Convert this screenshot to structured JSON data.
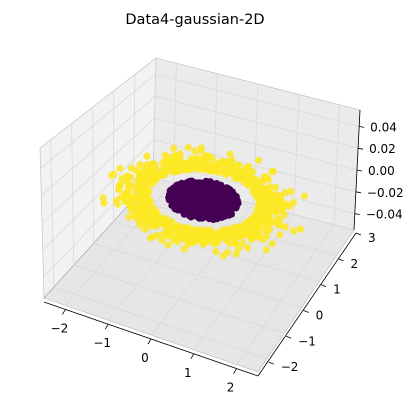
{
  "chart_data": {
    "type": "scatter",
    "projection": "3d",
    "title": "Data4-gaussian-2D",
    "xlabel": "",
    "ylabel": "",
    "zlabel": "",
    "xlim": [
      -2.5,
      2.5
    ],
    "ylim": [
      -2.5,
      3.0
    ],
    "zlim": [
      -0.055,
      0.055
    ],
    "x_ticks": [
      "−2",
      "−1",
      "0",
      "1",
      "2"
    ],
    "x_tick_values": [
      -2,
      -1,
      0,
      1,
      2
    ],
    "y_ticks": [
      "−2",
      "−1",
      "0",
      "1",
      "2",
      "3"
    ],
    "y_tick_values": [
      -2,
      -1,
      0,
      1,
      2,
      3
    ],
    "z_ticks": [
      "−0.04",
      "−0.02",
      "0.00",
      "0.02",
      "0.04"
    ],
    "z_tick_values": [
      -0.04,
      -0.02,
      0.0,
      0.02,
      0.04
    ],
    "grid": true,
    "colors": {
      "inner": "#440154",
      "outer": "#fde725",
      "pane": "#f2f2f2",
      "grid": "#d9d9d9"
    },
    "series": [
      {
        "color_class": "inner",
        "shape": "disk",
        "z": 0.0,
        "radius_range": [
          0.0,
          0.75
        ],
        "approx_points": 500
      },
      {
        "color_class": "outer",
        "shape": "ring",
        "z": 0.0,
        "radius_range": [
          0.8,
          2.2
        ],
        "approx_points": 700
      }
    ]
  }
}
